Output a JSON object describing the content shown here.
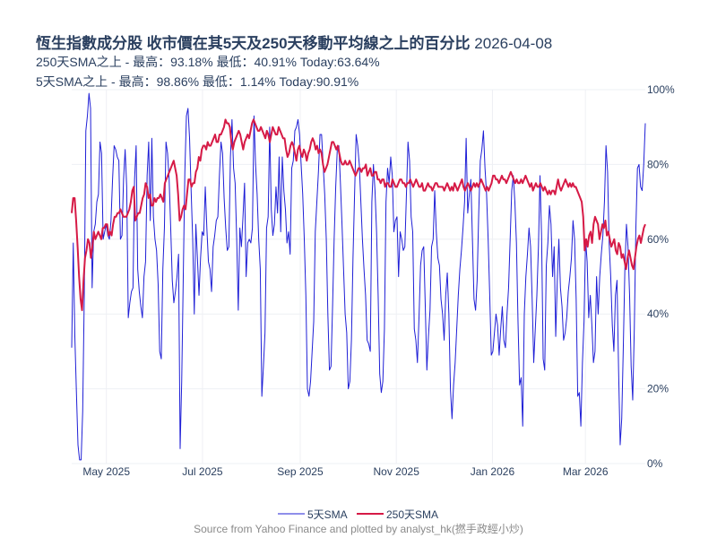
{
  "header": {
    "title_main": "恆生指數成分股 收市價在其5天及250天移動平均線之上的百分比",
    "title_date": "2026-04-08",
    "subtitle_250": "250天SMA之上 - 最高：93.18%  最低：40.91% Today:63.64%",
    "subtitle_5": "5天SMA之上 - 最高：98.86%  最低：1.14% Today:90.91%"
  },
  "source": "Source from Yahoo Finance and plotted by analyst_hk(撚手政經小炒)",
  "colors": {
    "sma5": "#1f1fd6",
    "sma250": "#d61a46",
    "grid": "#eef0f4",
    "text": "#2a3f5f"
  },
  "chart_data": {
    "type": "line",
    "x_start": "2025-04-09",
    "x_end": "2026-04-08",
    "xtick_labels": [
      "May 2025",
      "Jul 2025",
      "Sep 2025",
      "Nov 2025",
      "Jan 2026",
      "Mar 2026"
    ],
    "xtick_dates": [
      "2025-05-01",
      "2025-07-01",
      "2025-09-01",
      "2025-11-01",
      "2026-01-01",
      "2026-03-01"
    ],
    "ytick_labels": [
      "0%",
      "20%",
      "40%",
      "60%",
      "80%",
      "100%"
    ],
    "yticks": [
      0,
      20,
      40,
      60,
      80,
      100
    ],
    "ylim": [
      0,
      100
    ],
    "y_axis_side": "right",
    "legend_position": "bottom-center",
    "series": [
      {
        "name": "5天SMA",
        "color": "#1f1fd6",
        "values": [
          31,
          59,
          34,
          19,
          5,
          1,
          1,
          14,
          45,
          89,
          93,
          99,
          95,
          47,
          62,
          64,
          70,
          72,
          86,
          83,
          60,
          62,
          64,
          61,
          60,
          65,
          76,
          85,
          84,
          82,
          81,
          60,
          61,
          76,
          84,
          74,
          39,
          43,
          46,
          47,
          76,
          85,
          52,
          46,
          42,
          39,
          50,
          54,
          77,
          86,
          65,
          87,
          66,
          60,
          57,
          48,
          30,
          28,
          52,
          63,
          86,
          83,
          76,
          63,
          49,
          43,
          46,
          50,
          56,
          4,
          22,
          50,
          78,
          93,
          95,
          87,
          73,
          60,
          40,
          64,
          55,
          45,
          55,
          62,
          61,
          74,
          63,
          54,
          52,
          46,
          58,
          61,
          65,
          66,
          77,
          86,
          83,
          71,
          63,
          57,
          58,
          82,
          92,
          79,
          75,
          60,
          41,
          63,
          58,
          66,
          75,
          50,
          59,
          60,
          59,
          63,
          93,
          80,
          72,
          60,
          52,
          18,
          26,
          35,
          63,
          66,
          90,
          68,
          61,
          64,
          74,
          67,
          82,
          62,
          82,
          73,
          68,
          59,
          62,
          56,
          79,
          81,
          89,
          90,
          92,
          88,
          80,
          72,
          60,
          45,
          20,
          18,
          22,
          30,
          38,
          62,
          70,
          78,
          88,
          88,
          80,
          72,
          60,
          40,
          25,
          26,
          42,
          60,
          74,
          84,
          85,
          75,
          64,
          52,
          40,
          35,
          20,
          22,
          33,
          55,
          72,
          88,
          85,
          80,
          70,
          60,
          52,
          45,
          33,
          32,
          30,
          70,
          80,
          73,
          62,
          45,
          24,
          19,
          22,
          36,
          70,
          79,
          75,
          82,
          77,
          62,
          65,
          66,
          50,
          62,
          60,
          57,
          58,
          72,
          86,
          81,
          66,
          62,
          36,
          33,
          27,
          39,
          53,
          57,
          58,
          42,
          25,
          34,
          41,
          58,
          60,
          73,
          62,
          55,
          53,
          44,
          40,
          33,
          45,
          51,
          40,
          20,
          12,
          21,
          27,
          36,
          45,
          52,
          57,
          63,
          70,
          87,
          67,
          72,
          76,
          60,
          44,
          41,
          49,
          67,
          81,
          84,
          89,
          79,
          72,
          60,
          45,
          29,
          30,
          35,
          40,
          37,
          29,
          36,
          42,
          33,
          31,
          40,
          47,
          60,
          73,
          77,
          70,
          59,
          38,
          21,
          23,
          10,
          40,
          50,
          56,
          63,
          58,
          44,
          27,
          36,
          45,
          58,
          77,
          61,
          28,
          25,
          53,
          59,
          69,
          64,
          50,
          58,
          34,
          49,
          60,
          47,
          42,
          33,
          35,
          39,
          46,
          50,
          55,
          65,
          60,
          44,
          18,
          19,
          10,
          27,
          38,
          60,
          54,
          39,
          45,
          37,
          27,
          30,
          50,
          40,
          50,
          56,
          61,
          70,
          85,
          78,
          59,
          50,
          37,
          30,
          45,
          49,
          25,
          5,
          12,
          31,
          52,
          64,
          58,
          45,
          26,
          17,
          36,
          63,
          79,
          80,
          74,
          73,
          80,
          91
        ]
      },
      {
        "name": "250天SMA",
        "color": "#d61a46",
        "values": [
          67,
          71,
          71,
          65,
          58,
          50,
          44,
          41,
          49,
          55,
          57,
          60,
          59,
          55,
          58,
          62,
          60,
          61,
          62,
          61,
          60,
          63,
          63,
          64,
          64,
          61,
          62,
          61,
          64,
          66,
          66,
          67,
          67,
          68,
          67,
          66,
          66,
          66,
          67,
          68,
          70,
          73,
          74,
          65,
          66,
          67,
          67,
          69,
          71,
          72,
          75,
          74,
          71,
          72,
          69,
          69,
          71,
          70,
          71,
          71,
          72,
          71,
          70,
          75,
          76,
          77,
          78,
          79,
          80,
          81,
          79,
          77,
          72,
          65,
          66,
          68,
          69,
          68,
          72,
          76,
          76,
          74,
          75,
          75,
          78,
          79,
          82,
          81,
          84,
          85,
          85,
          84,
          86,
          85,
          85,
          86,
          87,
          88,
          86,
          86,
          88,
          88,
          89,
          90,
          92,
          91,
          91,
          90,
          86,
          84,
          86,
          87,
          88,
          89,
          88,
          86,
          84,
          86,
          87,
          88,
          87,
          89,
          91,
          92,
          91,
          90,
          89,
          89,
          90,
          89,
          88,
          87,
          89,
          88,
          86,
          88,
          90,
          89,
          88,
          88,
          90,
          89,
          88,
          87,
          87,
          84,
          82,
          83,
          85,
          86,
          85,
          83,
          81,
          84,
          85,
          83,
          82,
          84,
          83,
          81,
          83,
          84,
          86,
          87,
          86,
          84,
          85,
          83,
          84,
          83,
          80,
          78,
          79,
          80,
          82,
          84,
          86,
          86,
          85,
          84,
          85,
          83,
          81,
          80,
          80,
          81,
          80,
          80,
          81,
          80,
          79,
          78,
          77,
          78,
          79,
          79,
          78,
          79,
          79,
          80,
          77,
          78,
          79,
          77,
          77,
          78,
          78,
          76,
          76,
          75,
          76,
          76,
          74,
          75,
          75,
          74,
          74,
          76,
          75,
          74,
          74,
          75,
          76,
          76,
          75,
          75,
          74,
          75,
          75,
          76,
          75,
          74,
          75,
          76,
          75,
          74,
          74,
          75,
          73,
          73,
          74,
          75,
          74,
          74,
          73,
          74,
          75,
          75,
          74,
          74,
          74,
          74,
          73,
          74,
          75,
          74,
          73,
          74,
          73,
          75,
          74,
          73,
          74,
          75,
          76,
          74,
          73,
          74,
          75,
          74,
          73,
          74,
          75,
          74,
          75,
          74,
          75,
          76,
          75,
          74,
          73,
          74,
          73,
          74,
          75,
          77,
          77,
          76,
          76,
          75,
          76,
          77,
          76,
          76,
          75,
          76,
          77,
          78,
          77,
          76,
          75,
          76,
          75,
          75,
          76,
          75,
          76,
          77,
          76,
          75,
          74,
          75,
          73,
          74,
          75,
          74,
          74,
          75,
          74,
          73,
          74,
          73,
          72,
          73,
          72,
          73,
          73,
          72,
          74,
          76,
          74,
          73,
          74,
          75,
          76,
          75,
          74,
          75,
          74,
          75,
          74,
          74,
          73,
          72,
          71,
          70,
          66,
          57,
          60,
          58,
          61,
          62,
          59,
          64,
          66,
          65,
          64,
          60,
          62,
          64,
          63,
          65,
          61,
          62,
          60,
          58,
          59,
          60,
          57,
          56,
          59,
          58,
          55,
          56,
          54,
          52,
          55,
          57,
          55,
          53,
          52,
          55,
          58,
          60,
          61,
          59,
          61,
          63,
          64
        ]
      }
    ]
  }
}
